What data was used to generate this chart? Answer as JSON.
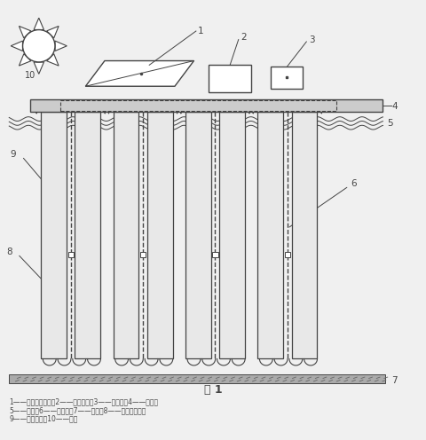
{
  "title": "图 1",
  "caption_lines": [
    "1——太阳能电池板；2——电源装置；3——空气泵；4——浮筏；",
    "5——水面；6——空气管；7——水底；8——充氧提升器；",
    "9——生物载体；10——太阳"
  ],
  "bg_color": "#f0f0f0",
  "line_color": "#444444",
  "dashed_color": "#555555",
  "carrier_fill": "#e8e8e8",
  "raft_fill": "#cccccc"
}
